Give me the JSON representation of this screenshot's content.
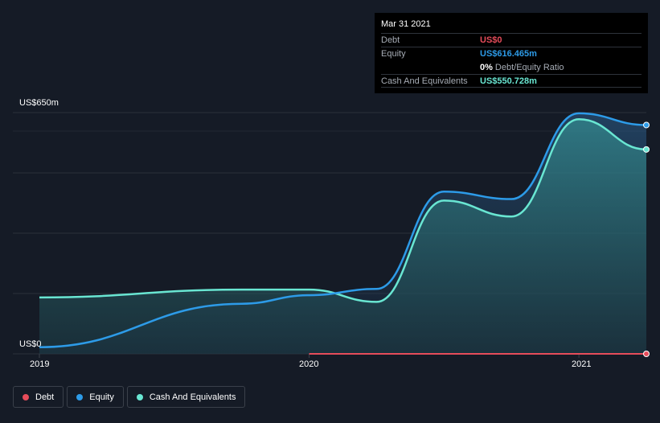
{
  "tooltip": {
    "date": "Mar 31 2021",
    "rows": [
      {
        "label": "Debt",
        "value": "US$0",
        "color": "#e64c5a"
      },
      {
        "label": "Equity",
        "value": "US$616.465m",
        "color": "#2d9be8"
      }
    ],
    "ratio_value": "0%",
    "ratio_label": "Debt/Equity Ratio",
    "cash": {
      "label": "Cash And Equivalents",
      "value": "US$550.728m",
      "color": "#69e6d2"
    }
  },
  "chart_data": {
    "type": "area",
    "ylabel_top": "US$650m",
    "ylabel_bottom": "US$0",
    "ylim": [
      0,
      650
    ],
    "xlim": [
      2019.0,
      2021.25
    ],
    "x_ticks": [
      {
        "value": 2019,
        "label": "2019"
      },
      {
        "value": 2020,
        "label": "2020"
      },
      {
        "value": 2021,
        "label": "2021"
      }
    ],
    "grid": true,
    "series": [
      {
        "name": "Debt",
        "color": "#e64c5a",
        "points": [
          [
            2020.0,
            0
          ],
          [
            2020.25,
            0
          ],
          [
            2020.5,
            0
          ],
          [
            2020.75,
            0
          ],
          [
            2021.0,
            0
          ],
          [
            2021.25,
            0
          ]
        ]
      },
      {
        "name": "Equity",
        "color": "#2d9be8",
        "points": [
          [
            2019.0,
            18
          ],
          [
            2019.75,
            135
          ],
          [
            2020.0,
            158
          ],
          [
            2020.25,
            175
          ],
          [
            2020.5,
            437
          ],
          [
            2020.75,
            417
          ],
          [
            2021.0,
            648
          ],
          [
            2021.25,
            616.465
          ]
        ]
      },
      {
        "name": "Cash And Equivalents",
        "color": "#69e6d2",
        "points": [
          [
            2019.0,
            152
          ],
          [
            2019.75,
            173
          ],
          [
            2020.0,
            173
          ],
          [
            2020.25,
            140
          ],
          [
            2020.5,
            413
          ],
          [
            2020.75,
            370
          ],
          [
            2021.0,
            632
          ],
          [
            2021.25,
            550.728
          ]
        ]
      }
    ]
  },
  "legend": [
    {
      "label": "Debt",
      "color": "#e64c5a"
    },
    {
      "label": "Equity",
      "color": "#2d9be8"
    },
    {
      "label": "Cash And Equivalents",
      "color": "#69e6d2"
    }
  ]
}
